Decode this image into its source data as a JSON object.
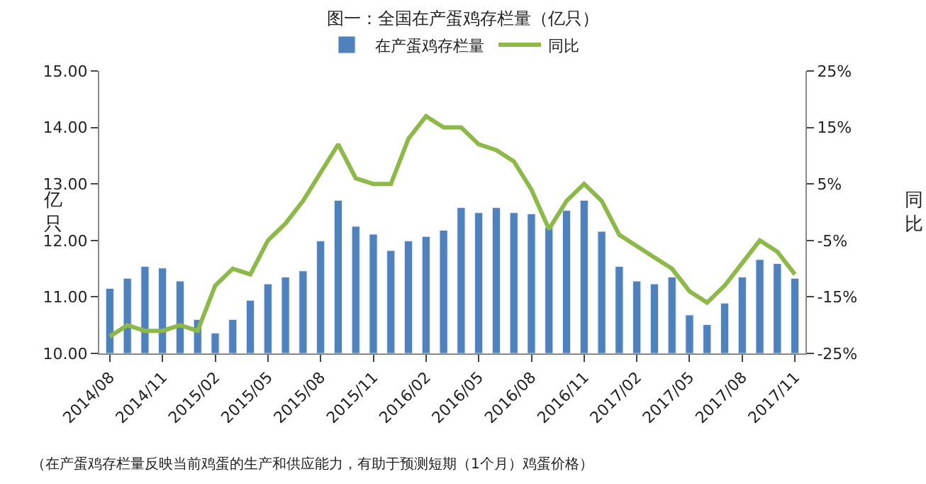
{
  "chart_data": {
    "type": "bar",
    "title": "图一：全国在产蛋鸡存栏量（亿只）",
    "ylabel": "亿只",
    "y2label": "同比",
    "categories": [
      "2014/08",
      null,
      null,
      "2014/11",
      null,
      null,
      "2015/02",
      null,
      null,
      "2015/05",
      null,
      null,
      "2015/08",
      null,
      null,
      "2015/11",
      null,
      null,
      "2016/02",
      null,
      null,
      "2016/05",
      null,
      null,
      "2016/08",
      null,
      null,
      "2016/11",
      null,
      null,
      "2017/02",
      null,
      null,
      "2017/05",
      null,
      null,
      "2017/08",
      null,
      null,
      "2017/11"
    ],
    "series": [
      {
        "name": "在产蛋鸡存栏量",
        "color": "#4f81bd",
        "values": [
          11.15,
          11.33,
          11.54,
          11.51,
          11.28,
          10.6,
          10.36,
          10.6,
          10.94,
          11.23,
          11.35,
          11.46,
          11.99,
          12.71,
          12.25,
          12.11,
          11.82,
          11.99,
          12.07,
          12.18,
          12.58,
          12.49,
          12.58,
          12.49,
          12.47,
          12.23,
          12.53,
          12.71,
          12.16,
          11.54,
          11.28,
          11.23,
          11.35,
          10.68,
          10.51,
          10.89,
          11.35,
          11.66,
          11.59,
          11.33
        ]
      },
      {
        "name": "同比",
        "type": "line",
        "axis": "y2",
        "color": "#8db948",
        "values": [
          -22,
          -20,
          -21,
          -21,
          -20,
          -21,
          -13,
          -10,
          -11,
          -5,
          -2,
          2,
          7,
          12,
          6,
          5,
          5,
          13,
          17,
          15,
          15,
          12,
          11,
          9,
          4,
          -3,
          2,
          5,
          2,
          -4,
          -6,
          -8,
          -10,
          -14,
          -16,
          -13,
          -9,
          -5,
          -7,
          -11
        ]
      }
    ],
    "ylim": [
      10,
      15
    ],
    "yticks": [
      {
        "value": 10,
        "label": "10.00"
      },
      {
        "value": 11,
        "label": "11.00"
      },
      {
        "value": 12,
        "label": "12.00"
      },
      {
        "value": 13,
        "label": "13.00"
      },
      {
        "value": 14,
        "label": "14.00"
      },
      {
        "value": 15,
        "label": "15.00"
      }
    ],
    "y2lim": [
      -25,
      25
    ],
    "y2ticks": [
      {
        "value": -25,
        "label": "-25%"
      },
      {
        "value": -15,
        "label": "-15%"
      },
      {
        "value": -5,
        "label": "-5%"
      },
      {
        "value": 5,
        "label": "5%"
      },
      {
        "value": 15,
        "label": "15%"
      },
      {
        "value": 25,
        "label": "25%"
      }
    ],
    "grid": false,
    "legend": "top",
    "marker": "none",
    "line_style": "solid",
    "annotations": [
      "（在产蛋鸡存栏量反映当前鸡蛋的生产和供应能力，有助于预测短期（1个月）鸡蛋价格）"
    ]
  }
}
